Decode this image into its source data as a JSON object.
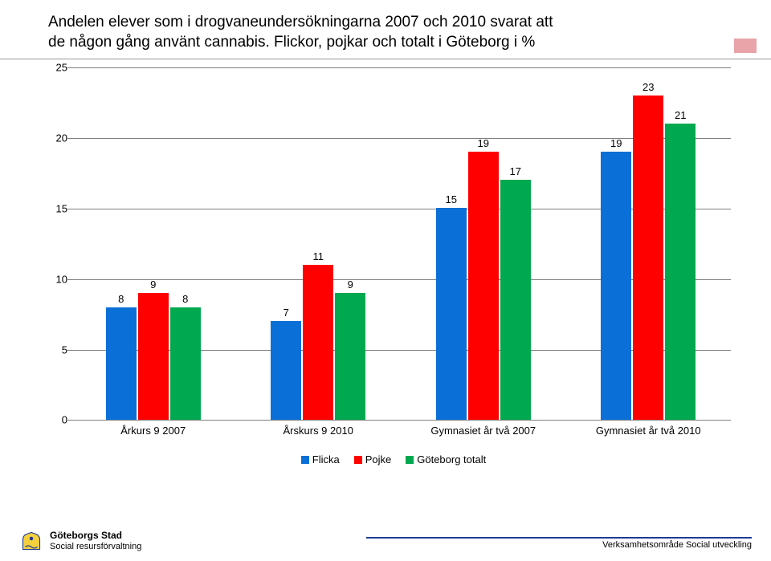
{
  "title_line1": "Andelen elever som i drogvaneundersökningarna 2007 och 2010 svarat att",
  "title_line2": "de någon gång använt cannabis. Flickor, pojkar och totalt i Göteborg i %",
  "chart": {
    "type": "bar",
    "ylim": [
      0,
      25
    ],
    "ytick_step": 5,
    "grid_color": "#7f7f7f",
    "background_color": "#ffffff",
    "label_fontsize": 13,
    "groups": [
      {
        "label": "Årkurs 9  2007",
        "values": [
          8,
          9,
          8
        ]
      },
      {
        "label": "Årskurs 9  2010",
        "values": [
          7,
          11,
          9
        ]
      },
      {
        "label": "Gymnasiet år två 2007",
        "values": [
          15,
          19,
          17
        ]
      },
      {
        "label": "Gymnasiet år två 2010",
        "values": [
          19,
          23,
          21
        ]
      }
    ],
    "series": [
      {
        "name": "Flicka",
        "color": "#0a6fd6"
      },
      {
        "name": "Pojke",
        "color": "#ff0000"
      },
      {
        "name": "Göteborg totalt",
        "color": "#00a84f"
      }
    ]
  },
  "footer": {
    "org": "Göteborgs Stad",
    "dept": "Social resursförvaltning",
    "right": "Verksamhetsområde Social utveckling"
  }
}
